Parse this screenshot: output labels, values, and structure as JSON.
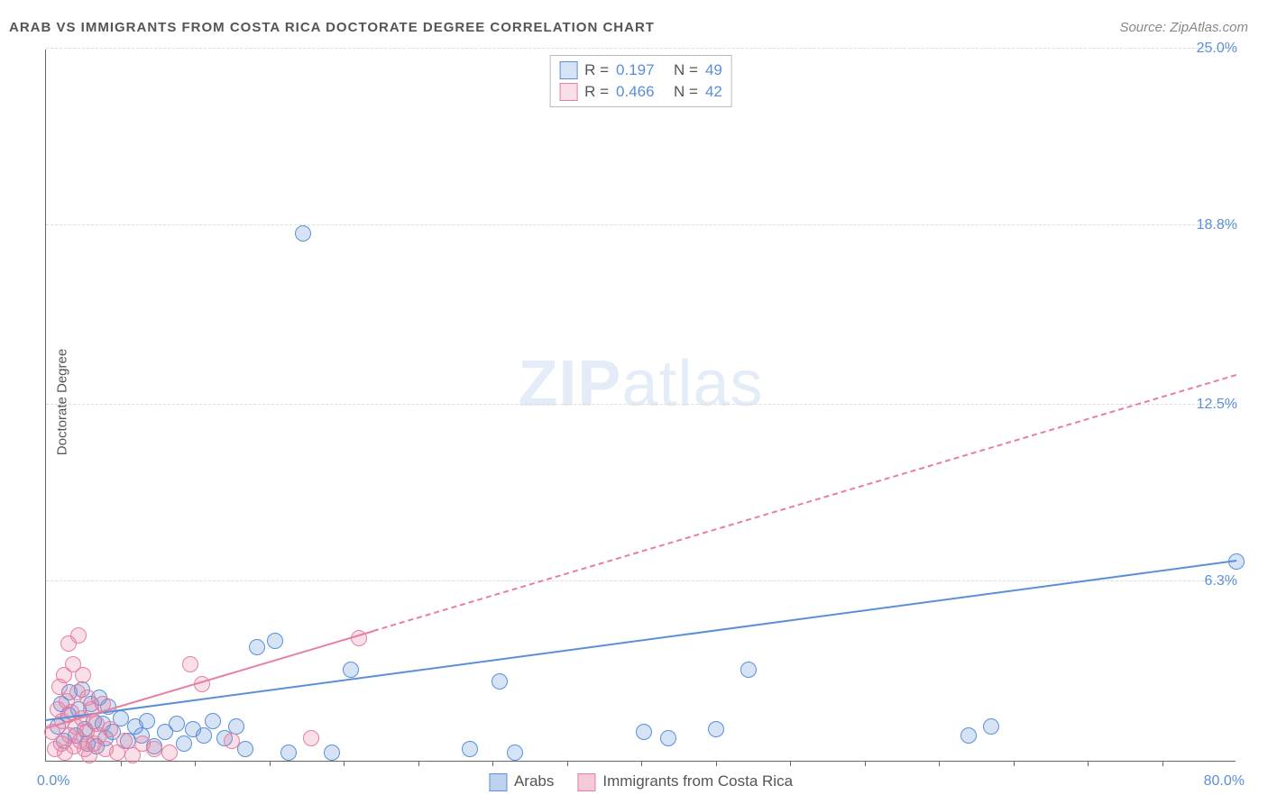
{
  "title": "ARAB VS IMMIGRANTS FROM COSTA RICA DOCTORATE DEGREE CORRELATION CHART",
  "source": "Source: ZipAtlas.com",
  "watermark": {
    "bold": "ZIP",
    "light": "atlas"
  },
  "yaxis_title": "Doctorate Degree",
  "chart": {
    "type": "scatter",
    "xlim": [
      0,
      80
    ],
    "ylim": [
      0,
      25
    ],
    "x_start_label": "0.0%",
    "x_end_label": "80.0%",
    "ytick_labels": [
      "6.3%",
      "12.5%",
      "18.8%",
      "25.0%"
    ],
    "ytick_values": [
      6.3,
      12.5,
      18.8,
      25.0
    ],
    "xtick_values": [
      5,
      10,
      15,
      20,
      25,
      30,
      35,
      40,
      45,
      50,
      55,
      60,
      65,
      70,
      75
    ],
    "background_color": "#ffffff",
    "grid_color": "#dddddd",
    "axis_color": "#666666",
    "tick_label_color": "#5a8fd8",
    "marker_radius": 9,
    "marker_border_width": 1.5,
    "marker_fill_opacity": 0.25,
    "series": [
      {
        "name": "Arabs",
        "color": "#5a8fd8",
        "fill": "rgba(90,143,216,0.25)",
        "R": "0.197",
        "N": "49",
        "trend": {
          "x1": 0,
          "y1": 1.4,
          "x2": 80,
          "y2": 7.0,
          "solid_until_x": 80
        },
        "points": [
          [
            0.8,
            1.2
          ],
          [
            1.0,
            2.0
          ],
          [
            1.2,
            0.7
          ],
          [
            1.5,
            1.6
          ],
          [
            1.6,
            2.4
          ],
          [
            2.0,
            0.9
          ],
          [
            2.2,
            1.8
          ],
          [
            2.4,
            2.5
          ],
          [
            2.6,
            1.1
          ],
          [
            2.8,
            0.6
          ],
          [
            3.0,
            2.0
          ],
          [
            3.2,
            1.4
          ],
          [
            3.4,
            0.5
          ],
          [
            3.6,
            2.2
          ],
          [
            3.8,
            1.3
          ],
          [
            4.0,
            0.8
          ],
          [
            4.2,
            1.9
          ],
          [
            4.5,
            1.0
          ],
          [
            5.0,
            1.5
          ],
          [
            5.5,
            0.7
          ],
          [
            6.0,
            1.2
          ],
          [
            6.4,
            0.9
          ],
          [
            6.8,
            1.4
          ],
          [
            7.3,
            0.5
          ],
          [
            8.0,
            1.0
          ],
          [
            8.8,
            1.3
          ],
          [
            9.3,
            0.6
          ],
          [
            9.9,
            1.1
          ],
          [
            10.6,
            0.9
          ],
          [
            11.2,
            1.4
          ],
          [
            12.0,
            0.8
          ],
          [
            12.8,
            1.2
          ],
          [
            13.4,
            0.4
          ],
          [
            14.2,
            4.0
          ],
          [
            15.4,
            4.2
          ],
          [
            16.3,
            0.3
          ],
          [
            17.3,
            18.5
          ],
          [
            19.2,
            0.3
          ],
          [
            20.5,
            3.2
          ],
          [
            28.5,
            0.4
          ],
          [
            30.5,
            2.8
          ],
          [
            31.5,
            0.3
          ],
          [
            40.2,
            1.0
          ],
          [
            41.8,
            0.8
          ],
          [
            45.0,
            1.1
          ],
          [
            47.2,
            3.2
          ],
          [
            62.0,
            0.9
          ],
          [
            63.5,
            1.2
          ],
          [
            80.0,
            7.0
          ]
        ]
      },
      {
        "name": "Immigrants from Costa Rica",
        "color": "#e87ea1",
        "fill": "rgba(232,126,161,0.25)",
        "R": "0.466",
        "N": "42",
        "trend": {
          "x1": 0,
          "y1": 1.1,
          "x2": 80,
          "y2": 13.5,
          "solid_until_x": 22
        },
        "points": [
          [
            0.4,
            1.0
          ],
          [
            0.6,
            0.4
          ],
          [
            0.8,
            1.8
          ],
          [
            0.9,
            2.6
          ],
          [
            1.0,
            0.6
          ],
          [
            1.1,
            1.4
          ],
          [
            1.2,
            3.0
          ],
          [
            1.3,
            0.3
          ],
          [
            1.4,
            2.1
          ],
          [
            1.5,
            4.1
          ],
          [
            1.6,
            0.9
          ],
          [
            1.7,
            1.7
          ],
          [
            1.8,
            3.4
          ],
          [
            1.9,
            0.5
          ],
          [
            2.0,
            1.2
          ],
          [
            2.1,
            2.4
          ],
          [
            2.2,
            4.4
          ],
          [
            2.3,
            0.7
          ],
          [
            2.4,
            1.5
          ],
          [
            2.5,
            3.0
          ],
          [
            2.6,
            0.4
          ],
          [
            2.7,
            1.0
          ],
          [
            2.8,
            2.2
          ],
          [
            2.9,
            0.2
          ],
          [
            3.0,
            1.8
          ],
          [
            3.2,
            0.6
          ],
          [
            3.4,
            1.3
          ],
          [
            3.6,
            0.9
          ],
          [
            3.8,
            2.0
          ],
          [
            4.0,
            0.4
          ],
          [
            4.3,
            1.1
          ],
          [
            4.8,
            0.3
          ],
          [
            5.3,
            0.7
          ],
          [
            5.8,
            0.2
          ],
          [
            6.5,
            0.6
          ],
          [
            7.3,
            0.4
          ],
          [
            8.3,
            0.3
          ],
          [
            9.7,
            3.4
          ],
          [
            10.5,
            2.7
          ],
          [
            12.5,
            0.7
          ],
          [
            17.8,
            0.8
          ],
          [
            21.0,
            4.3
          ]
        ]
      }
    ]
  },
  "legend_top_labels": {
    "R": "R",
    "N": "N",
    "eq": "="
  },
  "legend_bottom": [
    {
      "name": "Arabs",
      "color": "#5a8fd8",
      "fill": "rgba(90,143,216,0.4)"
    },
    {
      "name": "Immigrants from Costa Rica",
      "color": "#e87ea1",
      "fill": "rgba(232,126,161,0.4)"
    }
  ]
}
